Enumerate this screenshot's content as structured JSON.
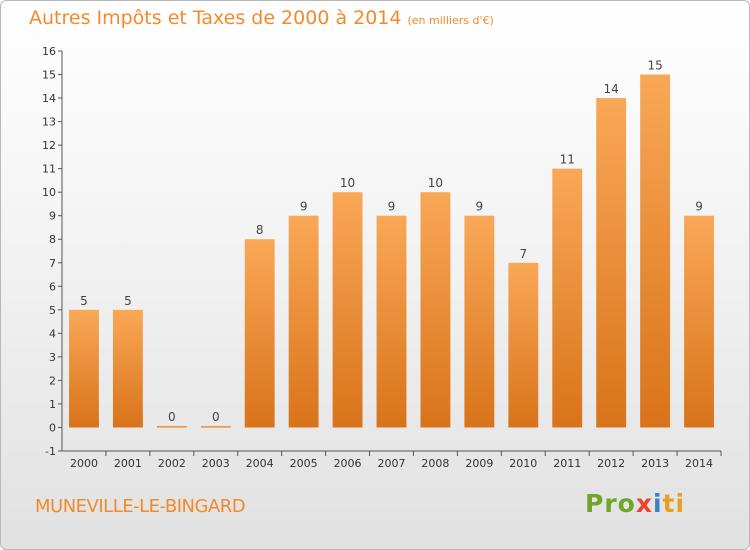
{
  "header": {
    "title": "Autres Impôts et Taxes de 2000 à 2014",
    "unit": "(en milliers d'€)"
  },
  "commune": "MUNEVILLE-LE-BINGARD",
  "logo": {
    "p1": "Pro",
    "p2": "x",
    "p3": "i",
    "p4": "ti"
  },
  "colors": {
    "bar_light": "#f9a857",
    "bar_dark": "#d9731a",
    "accent": "#f28a2c"
  },
  "chart_data": {
    "type": "bar",
    "title": "Autres Impôts et Taxes de 2000 à 2014",
    "subtitle": "(en milliers d'€)",
    "categories": [
      "2000",
      "2001",
      "2002",
      "2003",
      "2004",
      "2005",
      "2006",
      "2007",
      "2008",
      "2009",
      "2010",
      "2011",
      "2012",
      "2013",
      "2014"
    ],
    "values": [
      5,
      5,
      0,
      0,
      8,
      9,
      10,
      9,
      10,
      9,
      7,
      11,
      14,
      15,
      9
    ],
    "ylim": [
      -1,
      16
    ],
    "yticks": [
      -1,
      0,
      1,
      2,
      3,
      4,
      5,
      6,
      7,
      8,
      9,
      10,
      11,
      12,
      13,
      14,
      15,
      16
    ],
    "grid": false,
    "legend": "none"
  }
}
